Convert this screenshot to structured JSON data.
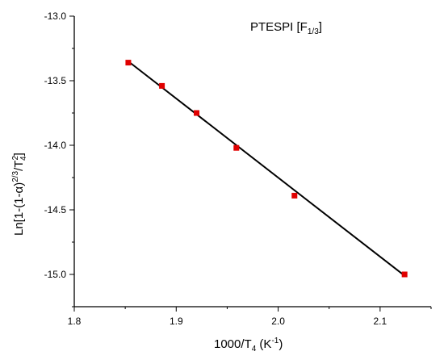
{
  "chart_data": {
    "type": "scatter",
    "title": "PTESPI [F",
    "title_sub": "1/3",
    "title_close": "]",
    "xlabel": {
      "prefix": "1000/T",
      "sub": "4",
      "mid": " (K",
      "sup": "-1",
      "suffix": ")"
    },
    "ylabel": {
      "prefix": "Ln[1-(1-α)",
      "sup1": "2/3",
      "mid": "/T",
      "sup2": "2",
      "sub2": "4",
      "suffix": "]"
    },
    "xlim": [
      1.8,
      2.15
    ],
    "ylim": [
      -15.25,
      -13.0
    ],
    "xticks": [
      1.8,
      1.9,
      2.0,
      2.1
    ],
    "xtick_labels": [
      "1.8",
      "1.9",
      "2.0",
      "2.1"
    ],
    "yticks": [
      -13.0,
      -13.5,
      -14.0,
      -14.5,
      -15.0
    ],
    "ytick_labels": [
      "-13.0",
      "-13.5",
      "-14.0",
      "-14.5",
      "-15.0"
    ],
    "grid": false,
    "marker_color": "#e00000",
    "line_color": "#000000",
    "series": [
      {
        "points": [
          {
            "x": 1.853,
            "y": -13.36
          },
          {
            "x": 1.886,
            "y": -13.54
          },
          {
            "x": 1.92,
            "y": -13.75
          },
          {
            "x": 1.959,
            "y": -14.02
          },
          {
            "x": 2.016,
            "y": -14.39
          },
          {
            "x": 2.124,
            "y": -15.0
          }
        ]
      }
    ],
    "fit_line": {
      "x": [
        1.853,
        2.124
      ],
      "y": [
        -13.35,
        -15.01
      ]
    }
  }
}
